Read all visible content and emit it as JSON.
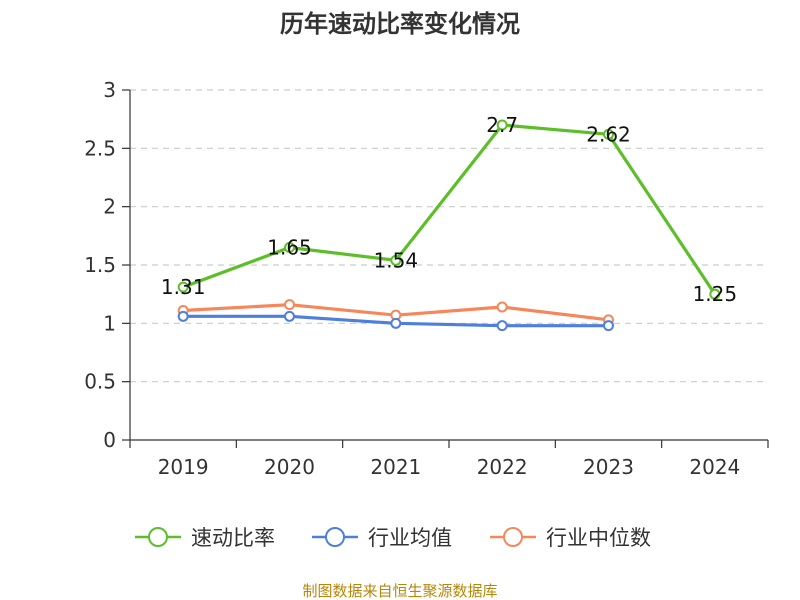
{
  "chart_data": {
    "type": "line",
    "title": "历年速动比率变化情况",
    "xlabel": "",
    "ylabel": "",
    "categories": [
      "2019",
      "2020",
      "2021",
      "2022",
      "2023",
      "2024"
    ],
    "yticks": [
      "0",
      "0.5",
      "1",
      "1.5",
      "2",
      "2.5",
      "3"
    ],
    "ylim": [
      0,
      3
    ],
    "grid": true,
    "legend_position": "bottom",
    "series": [
      {
        "name": "速动比率",
        "color": "#5cbf2a",
        "values": [
          1.31,
          1.65,
          1.54,
          2.7,
          2.62,
          1.25
        ],
        "show_labels": true
      },
      {
        "name": "行业均值",
        "color": "#4f7fdd",
        "values": [
          1.06,
          1.06,
          1.0,
          0.98,
          0.98,
          null
        ],
        "show_labels": false
      },
      {
        "name": "行业中位数",
        "color": "#f5875a",
        "values": [
          1.11,
          1.16,
          1.07,
          1.14,
          1.03,
          null
        ],
        "show_labels": false
      }
    ],
    "data_labels": [
      "1.31",
      "1.65",
      "1.54",
      "2.7",
      "2.62",
      "1.25"
    ]
  },
  "footer": {
    "source": "制图数据来自恒生聚源数据库",
    "source_color": "#b8860b"
  }
}
